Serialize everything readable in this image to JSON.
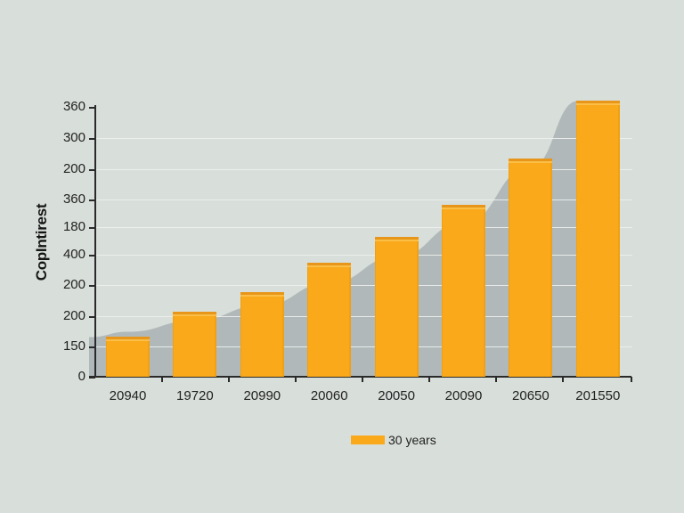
{
  "chart_data": {
    "type": "bar",
    "title": "",
    "xlabel": "",
    "ylabel": "CopIntirest",
    "categories": [
      "20940",
      "19720",
      "20990",
      "20060",
      "20050",
      "20090",
      "20650",
      "201550"
    ],
    "series": [
      {
        "name": "30 years",
        "values": [
          53,
          87,
          113,
          152,
          187,
          229,
          291,
          368
        ],
        "color": "#f9a91a"
      }
    ],
    "background_area": {
      "description": "gray shaded exponential-style area behind bars",
      "color": "#a9b1b3",
      "values": [
        60,
        75,
        95,
        125,
        160,
        205,
        280,
        368
      ]
    },
    "y_tick_labels": [
      "360",
      "300",
      "200",
      "360",
      "180",
      "400",
      "200",
      "200",
      "150",
      "0"
    ],
    "ylim": [
      0,
      360
    ],
    "grid": true,
    "legend_position": "bottom-center"
  },
  "legend": {
    "label": "30 years"
  },
  "colors": {
    "bar": "#f9a91a",
    "area": "#a9b1b3",
    "background": "#d8ded9",
    "axis": "#2a2a2a"
  }
}
